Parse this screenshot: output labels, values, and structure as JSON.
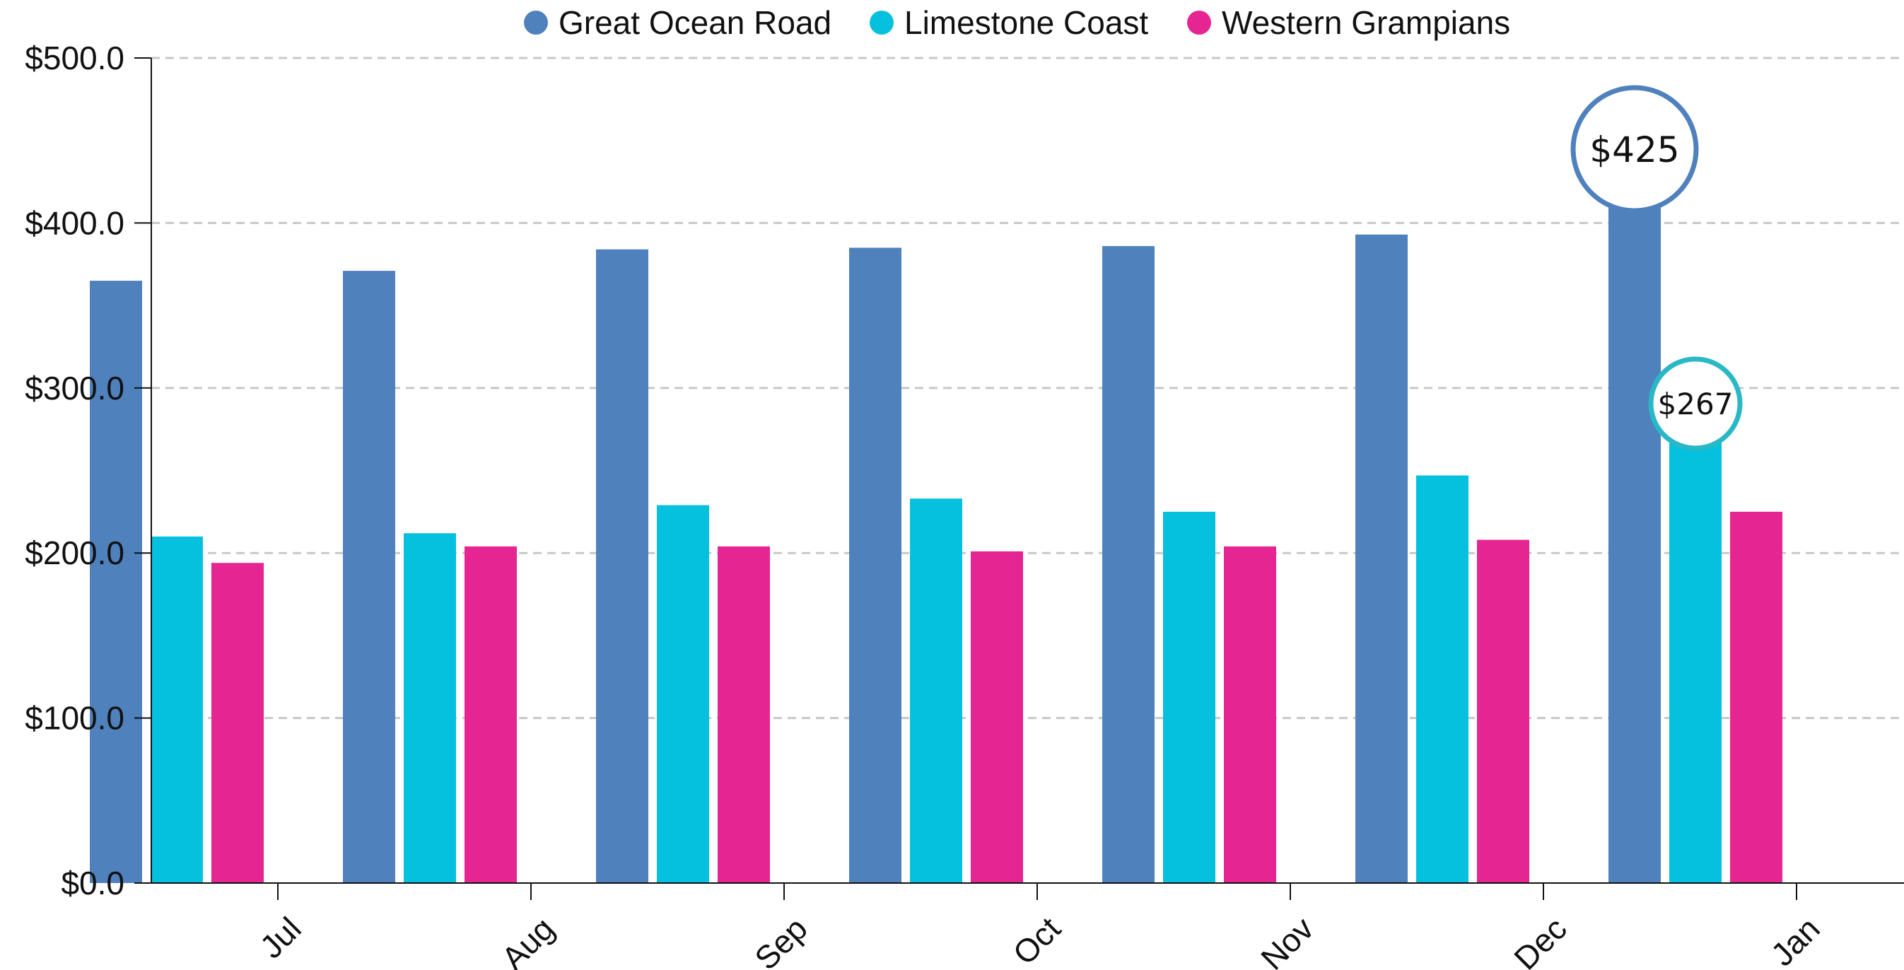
{
  "chart_data": {
    "type": "bar",
    "categories": [
      "Jul",
      "Aug",
      "Sep",
      "Oct",
      "Nov",
      "Dec",
      "Jan"
    ],
    "series": [
      {
        "name": "Great Ocean Road",
        "color": "#4f81bd",
        "values": [
          365,
          371,
          384,
          385,
          386,
          393,
          425
        ]
      },
      {
        "name": "Limestone Coast",
        "color": "#06c1de",
        "values": [
          210,
          212,
          229,
          233,
          225,
          247,
          267
        ]
      },
      {
        "name": "Western Grampians",
        "color": "#e52592",
        "values": [
          194,
          204,
          204,
          201,
          204,
          208,
          225
        ]
      }
    ],
    "ylim": [
      0,
      500
    ],
    "yticks": [
      0,
      100,
      200,
      300,
      400,
      500
    ],
    "ytick_labels": [
      "$0.0",
      "$100.0",
      "$200.0",
      "$300.0",
      "$400.0",
      "$500.0"
    ],
    "grid": true,
    "legend_position": "top",
    "annotations": [
      {
        "label": "$425",
        "category": "Jan",
        "series": "Great Ocean Road",
        "value": 425,
        "border_color": "#4f81bd"
      },
      {
        "label": "$267",
        "category": "Jan",
        "series": "Limestone Coast",
        "value": 267,
        "border_color": "#2ab7c6"
      }
    ]
  }
}
